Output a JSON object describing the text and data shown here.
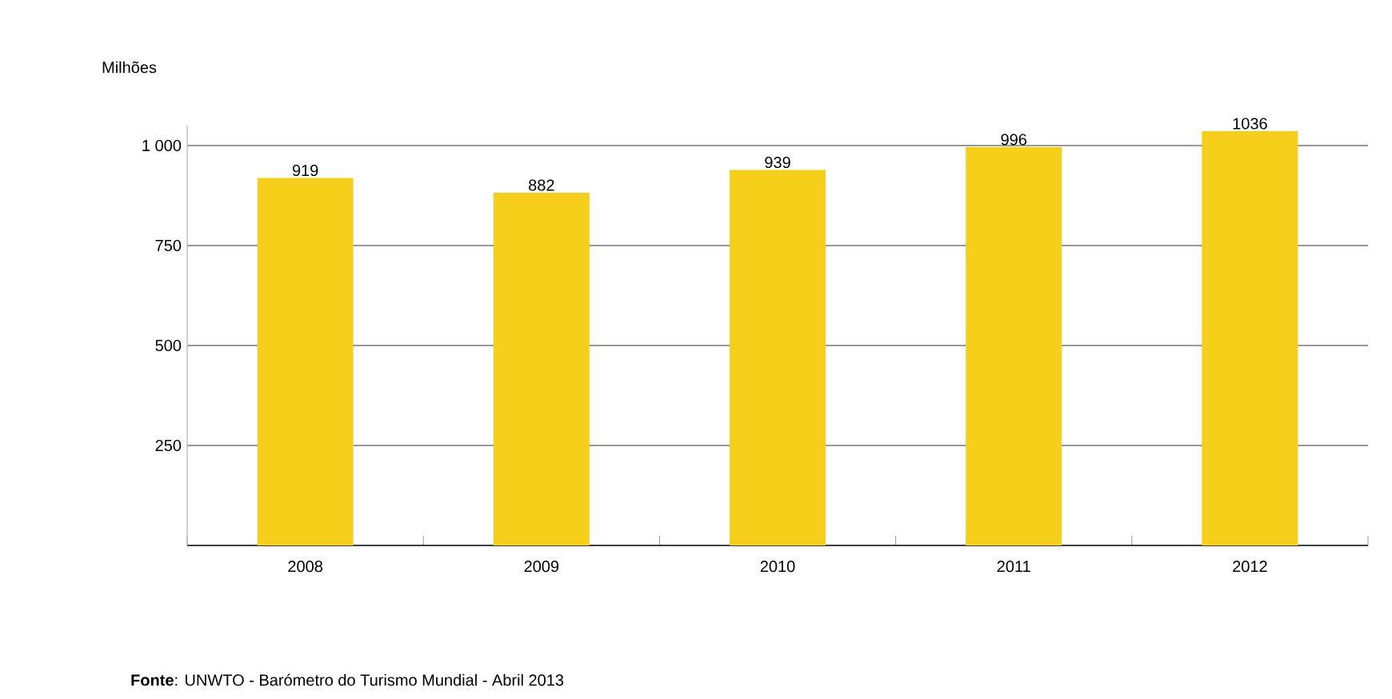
{
  "chart_data": {
    "type": "bar",
    "ylabel": "Milhões",
    "categories": [
      "2008",
      "2009",
      "2010",
      "2011",
      "2012"
    ],
    "values": [
      919,
      882,
      939,
      996,
      1036
    ],
    "color": "#f5cf1a",
    "ylim": [
      0,
      1050
    ],
    "yticks": [
      250,
      500,
      750,
      {
        "value": 1000,
        "label": "1 000"
      }
    ],
    "grid": "y",
    "data_labels": true,
    "annotations": [
      "**Fonte**: UNWTO - Barómetro do Turismo Mundial - Abril 2013"
    ]
  }
}
